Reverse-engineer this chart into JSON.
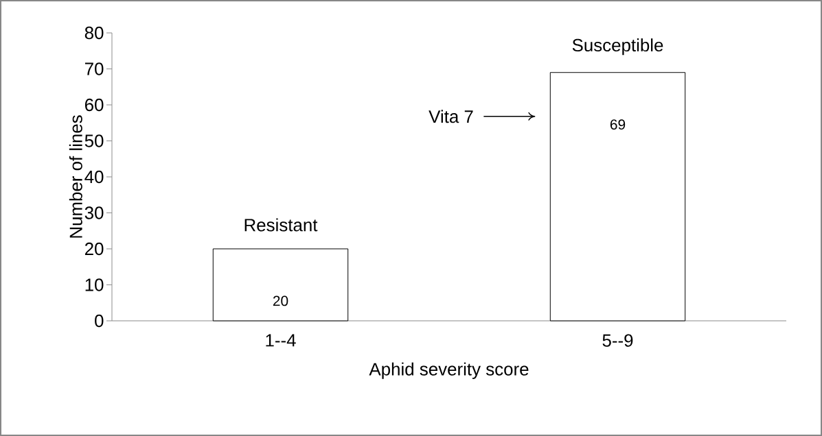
{
  "chart_data": {
    "type": "bar",
    "xlabel": "Aphid severity score",
    "ylabel": "Number of lines",
    "categories": [
      "1--4",
      "5--9"
    ],
    "values": [
      20,
      69
    ],
    "color": "#ffffff",
    "ylim": [
      0,
      80
    ],
    "yticks": [
      0,
      10,
      20,
      30,
      40,
      50,
      60,
      70,
      80
    ],
    "data_labels": true,
    "annotations": [
      {
        "text": "Resistant",
        "x": "1--4",
        "y": 20
      },
      {
        "text": "Susceptible",
        "x": "5--9",
        "y": 69
      },
      "Vita 7"
    ]
  }
}
